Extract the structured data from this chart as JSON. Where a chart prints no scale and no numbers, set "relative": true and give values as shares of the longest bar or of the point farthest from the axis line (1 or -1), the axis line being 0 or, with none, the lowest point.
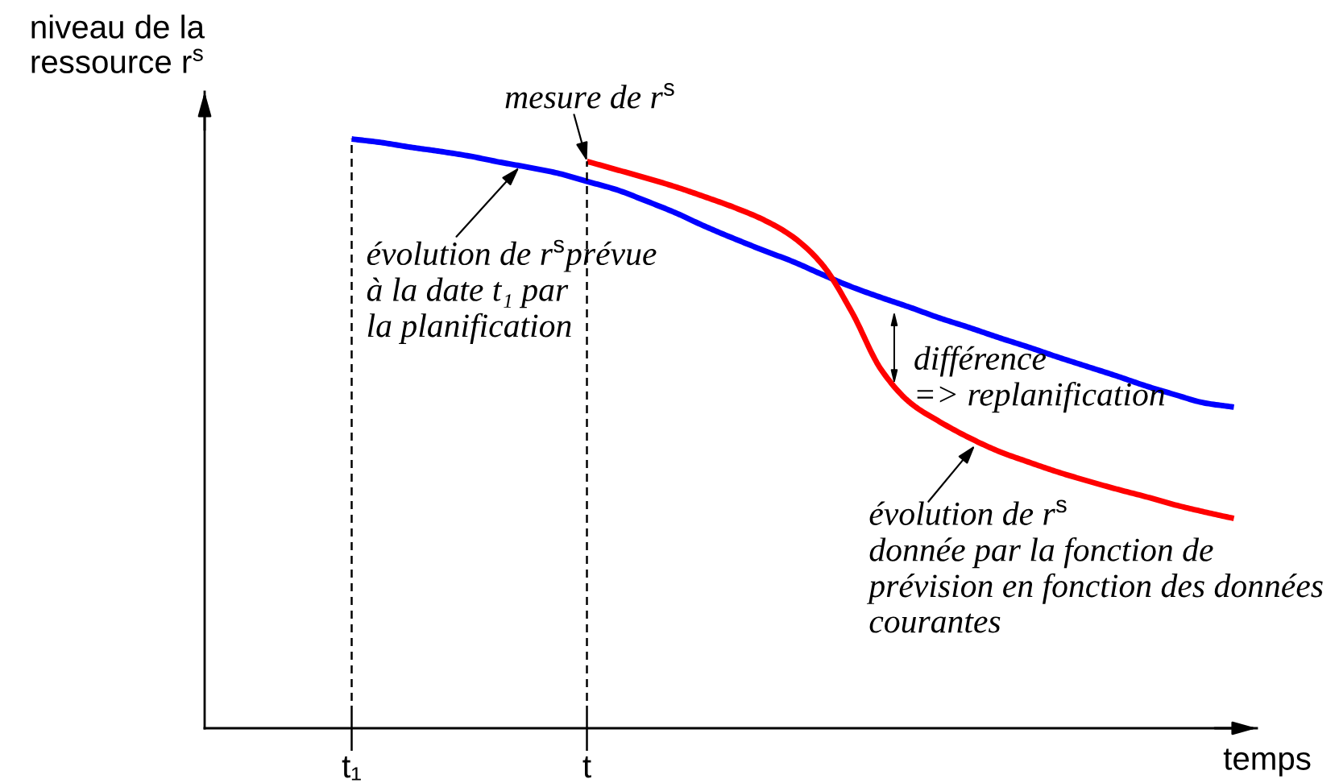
{
  "chart_data": {
    "type": "line",
    "relative": true,
    "ylabel": "niveau de la\nressource r$^{s}$",
    "xlabel": "temps",
    "categories": [
      null,
      null,
      null,
      null,
      null,
      "t₁",
      null,
      null,
      null,
      null,
      null,
      null,
      null,
      "t",
      null,
      null,
      null,
      null,
      null,
      null,
      null,
      null,
      null,
      null,
      null,
      null,
      null,
      null,
      null,
      null,
      null,
      null,
      null,
      null,
      null,
      null
    ],
    "series": [
      {
        "color": "#0000ff",
        "values": [
          null,
          null,
          null,
          null,
          null,
          1.0,
          0.994,
          0.986,
          0.979,
          0.971,
          0.961,
          0.952,
          0.942,
          0.928,
          0.914,
          0.895,
          0.875,
          0.852,
          0.831,
          0.811,
          0.792,
          0.77,
          0.749,
          0.731,
          0.714,
          0.696,
          0.68,
          0.663,
          0.647,
          0.63,
          0.614,
          0.598,
          0.581,
          0.566,
          0.552,
          0.545
        ]
      },
      {
        "color": "#ff0000",
        "values": [
          null,
          null,
          null,
          null,
          null,
          null,
          null,
          null,
          null,
          null,
          null,
          null,
          null,
          0.962,
          0.948,
          0.934,
          0.919,
          0.902,
          0.884,
          0.863,
          0.834,
          0.787,
          0.707,
          0.609,
          0.552,
          0.52,
          0.493,
          0.47,
          0.452,
          0.435,
          0.42,
          0.406,
          0.393,
          0.379,
          0.367,
          0.356
        ]
      }
    ],
    "ref_lines": [
      {
        "axis": "x",
        "value": "t₁",
        "color": "#000000",
        "line_style": "dashed"
      },
      {
        "axis": "x",
        "value": "t",
        "color": "#000000",
        "line_style": "dashed"
      }
    ],
    "annotations": [
      {
        "text": "mesure de r$^{s}$",
        "x": "t",
        "y": 0.962
      },
      "évolution de r$^{s}$prévue\nà la date t₁ par\nla planification",
      "différence\n=> replanification",
      "évolution de r$^{s}$\ndonnée par la fonction de\nprévision en fonction des données\ncourantes"
    ],
    "grid": false,
    "line_style": "solid"
  }
}
